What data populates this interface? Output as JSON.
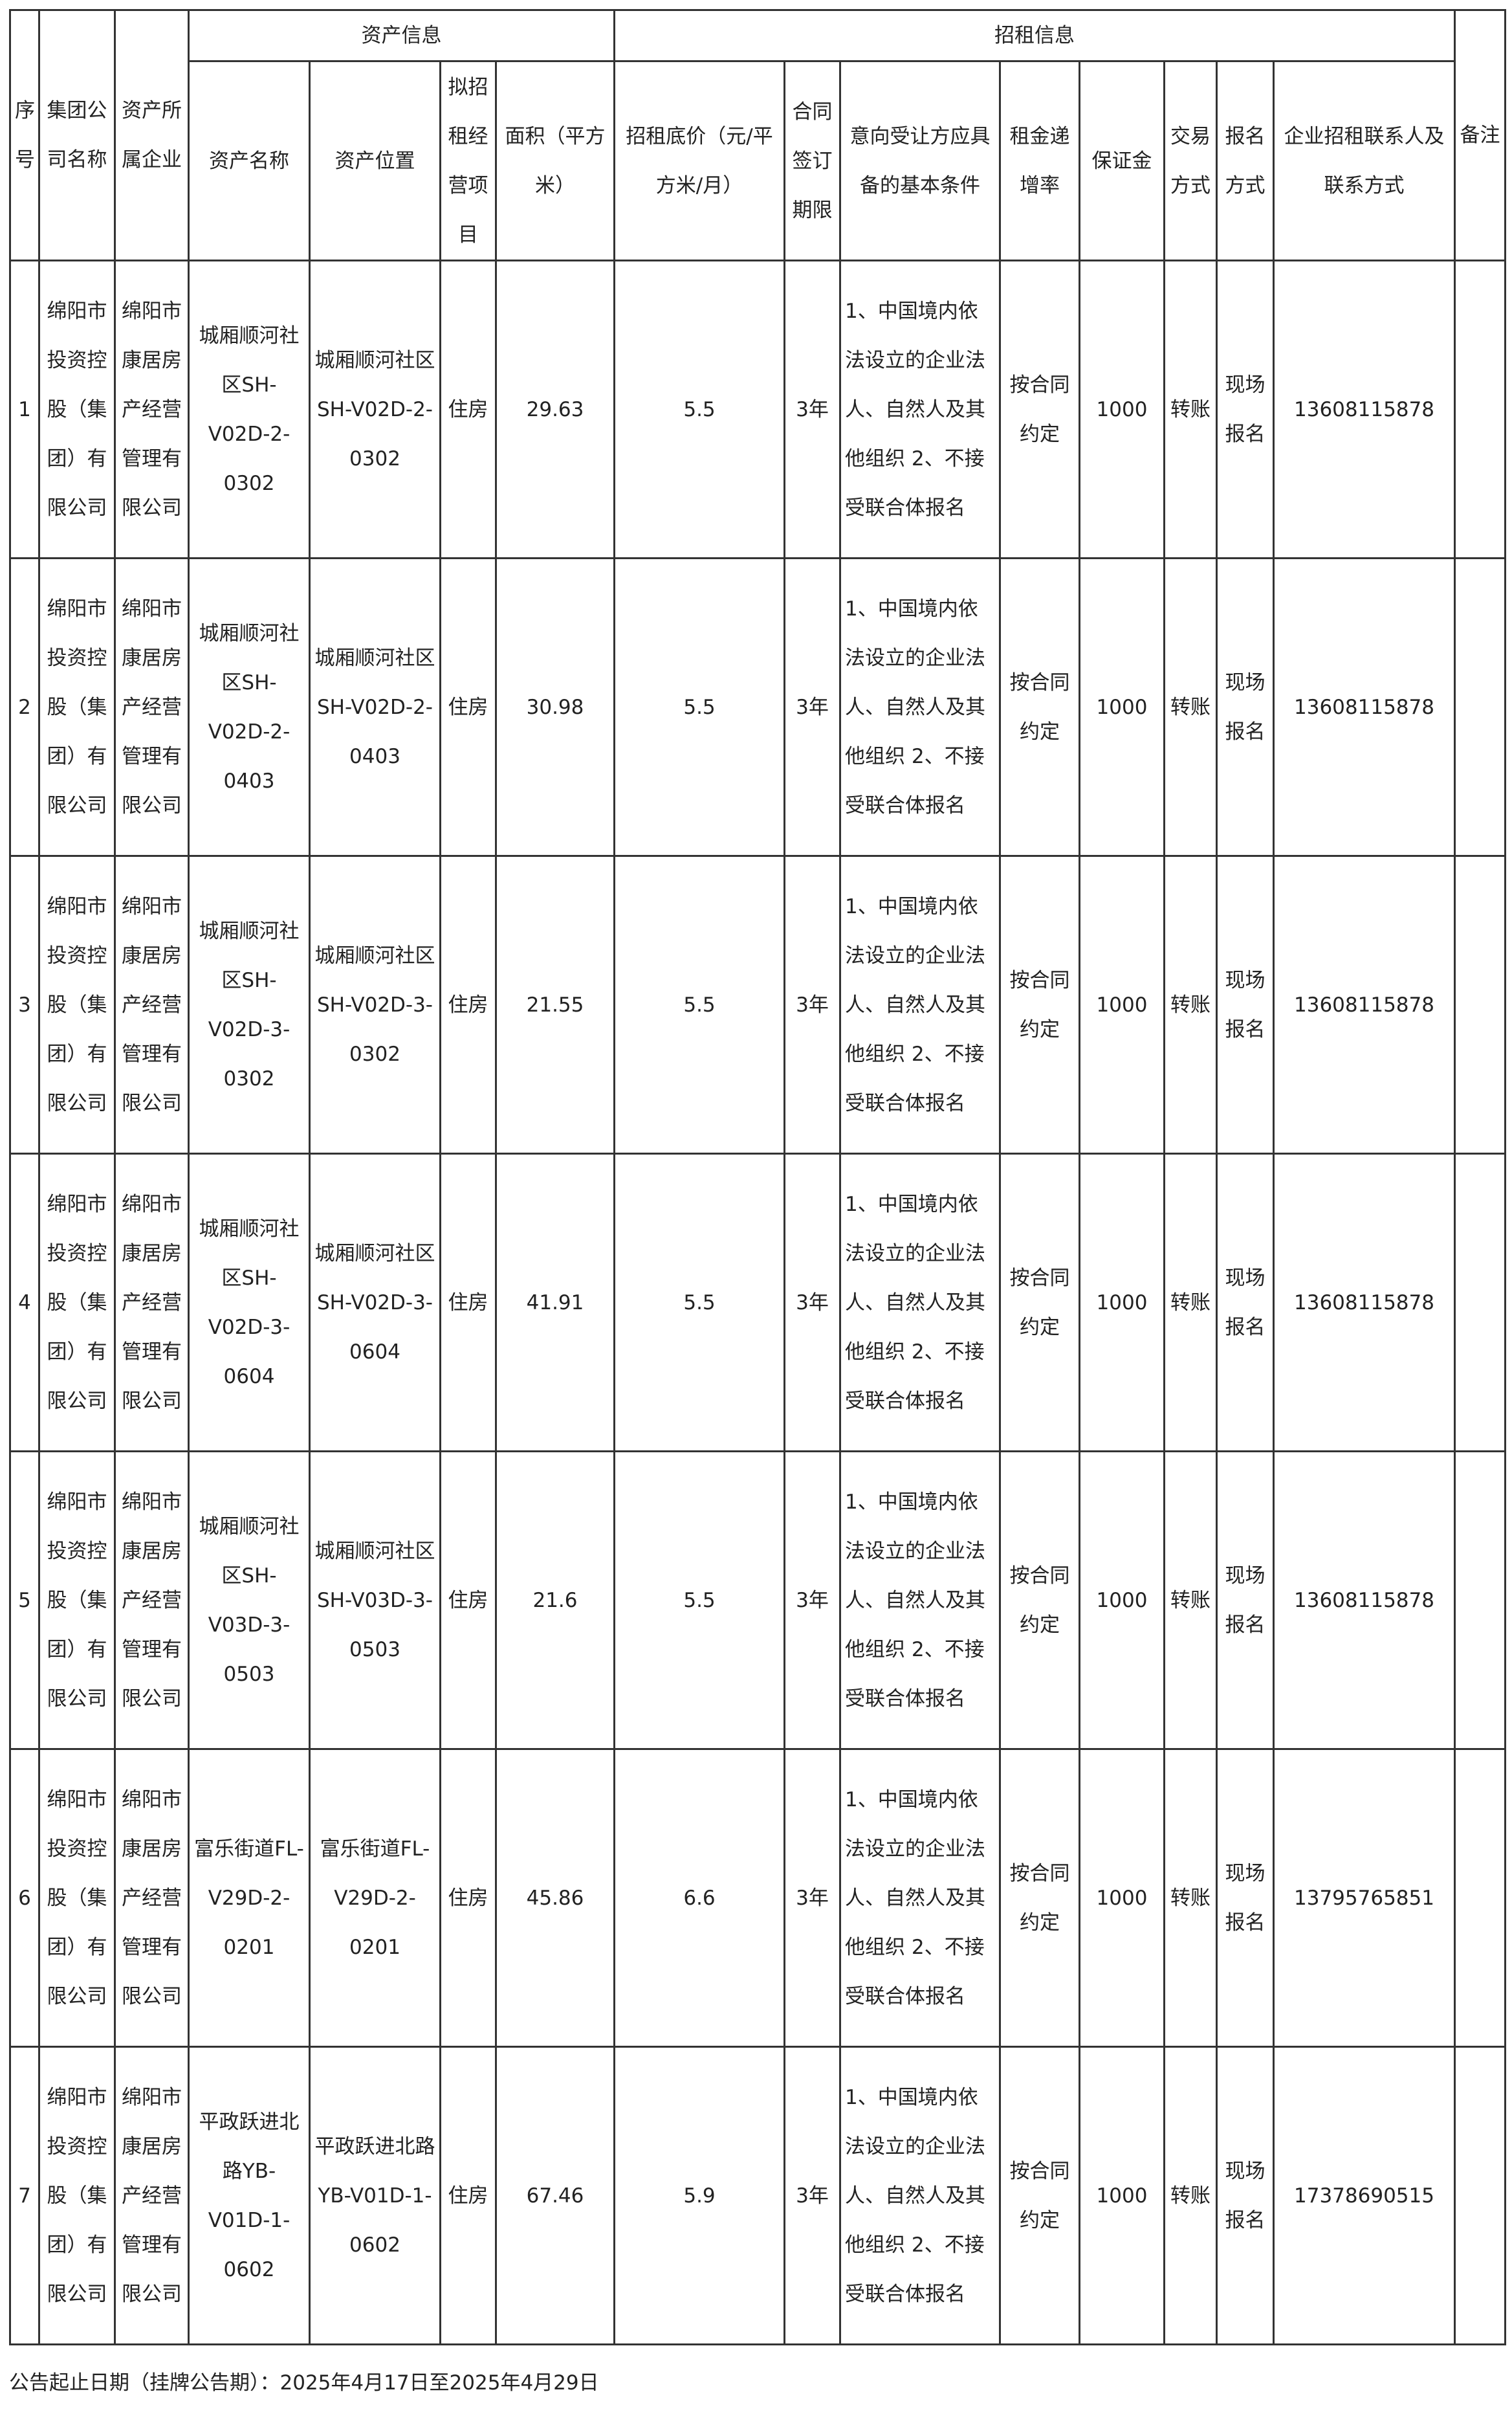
{
  "header": {
    "group_asset": "资产信息",
    "group_lease": "招租信息",
    "columns": [
      "序号",
      "集团公司名称",
      "资产所属企业",
      "资产名称",
      "资产位置",
      "拟招租经营项目",
      "面积（平方米）",
      "招租底价（元/平方米/月）",
      "合同签订期限",
      "意向受让方应具备的基本条件",
      "租金递增率",
      "保证金",
      "交易方式",
      "报名方式",
      "企业招租联系人及联系方式",
      "备注"
    ]
  },
  "rows": [
    {
      "no": "1",
      "group": "绵阳市投资控股（集团）有限公司",
      "owner": "绵阳市康居房产经营管理有限公司",
      "name": "城厢顺河社区SH-V02D-2-0302",
      "location": "城厢顺河社区SH-V02D-2-0302",
      "use": "住房",
      "area": "29.63",
      "price": "5.5",
      "term": "3年",
      "cond": "1、中国境内依法设立的企业法人、自然人及其他组织 2、不接受联合体报名",
      "rate": "按合同约定",
      "deposit": "1000",
      "trade": "转账",
      "signup": "现场报名",
      "contact": "13608115878",
      "note": ""
    },
    {
      "no": "2",
      "group": "绵阳市投资控股（集团）有限公司",
      "owner": "绵阳市康居房产经营管理有限公司",
      "name": "城厢顺河社区SH-V02D-2-0403",
      "location": "城厢顺河社区SH-V02D-2-0403",
      "use": "住房",
      "area": "30.98",
      "price": "5.5",
      "term": "3年",
      "cond": "1、中国境内依法设立的企业法人、自然人及其他组织 2、不接受联合体报名",
      "rate": "按合同约定",
      "deposit": "1000",
      "trade": "转账",
      "signup": "现场报名",
      "contact": "13608115878",
      "note": ""
    },
    {
      "no": "3",
      "group": "绵阳市投资控股（集团）有限公司",
      "owner": "绵阳市康居房产经营管理有限公司",
      "name": "城厢顺河社区SH-V02D-3-0302",
      "location": "城厢顺河社区SH-V02D-3-0302",
      "use": "住房",
      "area": "21.55",
      "price": "5.5",
      "term": "3年",
      "cond": "1、中国境内依法设立的企业法人、自然人及其他组织 2、不接受联合体报名",
      "rate": "按合同约定",
      "deposit": "1000",
      "trade": "转账",
      "signup": "现场报名",
      "contact": "13608115878",
      "note": ""
    },
    {
      "no": "4",
      "group": "绵阳市投资控股（集团）有限公司",
      "owner": "绵阳市康居房产经营管理有限公司",
      "name": "城厢顺河社区SH-V02D-3-0604",
      "location": "城厢顺河社区SH-V02D-3-0604",
      "use": "住房",
      "area": "41.91",
      "price": "5.5",
      "term": "3年",
      "cond": "1、中国境内依法设立的企业法人、自然人及其他组织 2、不接受联合体报名",
      "rate": "按合同约定",
      "deposit": "1000",
      "trade": "转账",
      "signup": "现场报名",
      "contact": "13608115878",
      "note": ""
    },
    {
      "no": "5",
      "group": "绵阳市投资控股（集团）有限公司",
      "owner": "绵阳市康居房产经营管理有限公司",
      "name": "城厢顺河社区SH-V03D-3-0503",
      "location": "城厢顺河社区SH-V03D-3-0503",
      "use": "住房",
      "area": "21.6",
      "price": "5.5",
      "term": "3年",
      "cond": "1、中国境内依法设立的企业法人、自然人及其他组织 2、不接受联合体报名",
      "rate": "按合同约定",
      "deposit": "1000",
      "trade": "转账",
      "signup": "现场报名",
      "contact": "13608115878",
      "note": ""
    },
    {
      "no": "6",
      "group": "绵阳市投资控股（集团）有限公司",
      "owner": "绵阳市康居房产经营管理有限公司",
      "name": "富乐街道FL-V29D-2-0201",
      "location": "富乐街道FL-V29D-2-0201",
      "use": "住房",
      "area": "45.86",
      "price": "6.6",
      "term": "3年",
      "cond": "1、中国境内依法设立的企业法人、自然人及其他组织 2、不接受联合体报名",
      "rate": "按合同约定",
      "deposit": "1000",
      "trade": "转账",
      "signup": "现场报名",
      "contact": "13795765851",
      "note": ""
    },
    {
      "no": "7",
      "group": "绵阳市投资控股（集团）有限公司",
      "owner": "绵阳市康居房产经营管理有限公司",
      "name": "平政跃进北路YB-V01D-1-0602",
      "location": "平政跃进北路YB-V01D-1-0602",
      "use": "住房",
      "area": "67.46",
      "price": "5.9",
      "term": "3年",
      "cond": "1、中国境内依法设立的企业法人、自然人及其他组织 2、不接受联合体报名",
      "rate": "按合同约定",
      "deposit": "1000",
      "trade": "转账",
      "signup": "现场报名",
      "contact": "17378690515",
      "note": ""
    }
  ],
  "footer": "公告起止日期（挂牌公告期）：2025年4月17日至2025年4月29日"
}
